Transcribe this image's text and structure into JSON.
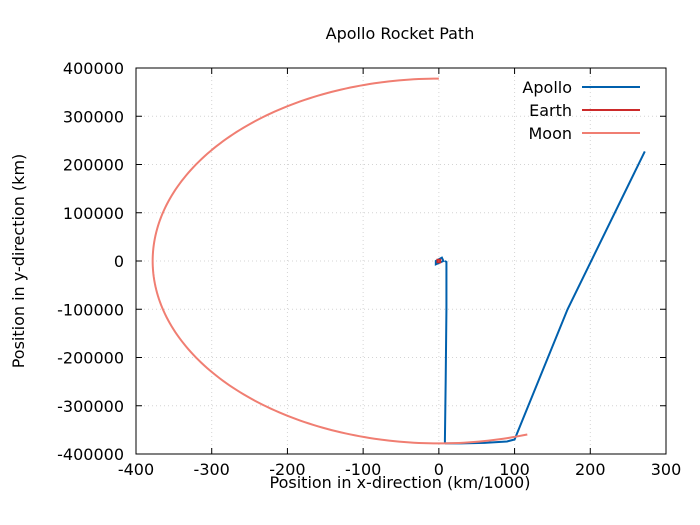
{
  "chart_data": {
    "type": "line",
    "title": "Apollo Rocket Path",
    "xlabel": "Position in x-direction (km/1000)",
    "ylabel": "Position in y-direction (km)",
    "xlim": [
      -400,
      300
    ],
    "ylim": [
      -400000,
      400000
    ],
    "xticks": [
      -400,
      -300,
      -200,
      -100,
      0,
      100,
      200,
      300
    ],
    "xtick_labels": [
      "-400",
      "-300",
      "-200",
      "-100",
      "0",
      "100",
      "200",
      "300"
    ],
    "yticks": [
      -400000,
      -300000,
      -200000,
      -100000,
      0,
      100000,
      200000,
      300000,
      400000
    ],
    "ytick_labels": [
      "-400000",
      "-300000",
      "-200000",
      "-100000",
      "0",
      "100000",
      "200000",
      "300000",
      "400000"
    ],
    "grid": true,
    "legend_position": "top-right",
    "series": [
      {
        "name": "Apollo",
        "color": "#0060ad",
        "segments": [
          {
            "x": [
              -4,
              6,
              4,
              -4
            ],
            "y": [
              -7000,
              0,
              7000,
              0
            ],
            "closed": true
          },
          {
            "x": [
              8,
              10,
              10,
              9,
              8,
              8
            ],
            "y": [
              0,
              -2000,
              -100000,
              -250000,
              -370000,
              -378000
            ]
          },
          {
            "x": [
              8,
              30,
              60,
              90,
              100,
              170,
              272
            ],
            "y": [
              -378000,
              -378000,
              -377000,
              -374000,
              -370000,
              -100000,
              227000
            ]
          }
        ]
      },
      {
        "name": "Earth",
        "color": "#cc2a2a",
        "segments": [
          {
            "x": [
              -1.8,
              1.8,
              1.8,
              -1.8
            ],
            "y": [
              -2500,
              -2500,
              2500,
              2500
            ],
            "closed": true
          }
        ]
      },
      {
        "name": "Moon",
        "color": "#f07e72",
        "type": "orbit",
        "radius": 378,
        "angle_start_deg": 90,
        "angle_end_deg": 288
      }
    ]
  }
}
